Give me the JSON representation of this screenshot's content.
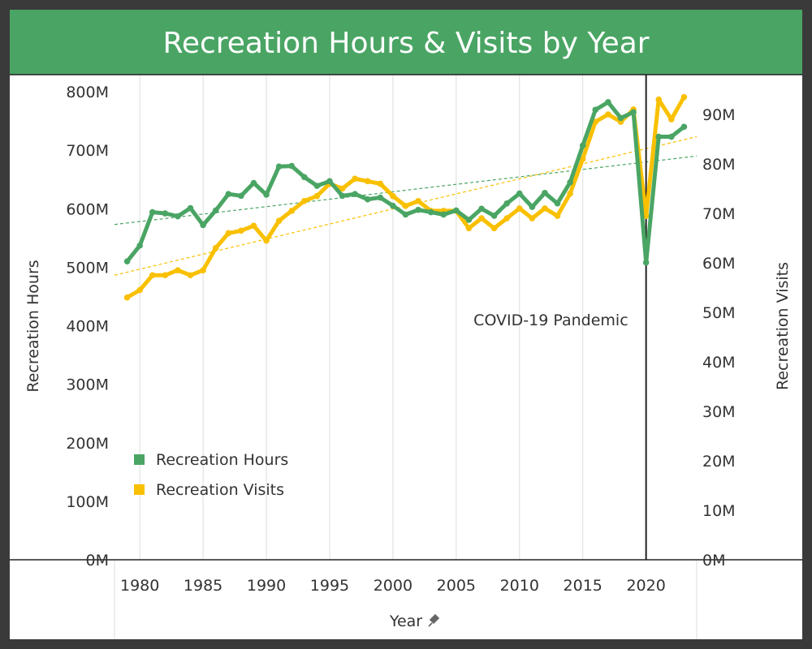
{
  "title": "Recreation Hours & Visits by Year",
  "colors": {
    "hours": "#4aa564",
    "visits": "#f9c000",
    "header": "#4aa564",
    "covid_line": "#222222"
  },
  "chart_data": {
    "type": "line",
    "title": "Recreation Hours & Visits by Year",
    "xlabel": "Year",
    "ylabel_left": "Recreation Hours",
    "ylabel_right": "Recreation Visits",
    "x_ticks": [
      1980,
      1985,
      1990,
      1995,
      2000,
      2005,
      2010,
      2015,
      2020
    ],
    "y_left_ticks": [
      "0M",
      "100M",
      "200M",
      "300M",
      "400M",
      "500M",
      "600M",
      "700M",
      "800M"
    ],
    "y_right_ticks": [
      "0M",
      "10M",
      "20M",
      "30M",
      "40M",
      "50M",
      "60M",
      "70M",
      "80M",
      "90M"
    ],
    "y_left_range": [
      0,
      820
    ],
    "y_right_range": [
      0,
      95
    ],
    "grid": "vertical",
    "legend_position": "bottom-left",
    "x": [
      1979,
      1980,
      1981,
      1982,
      1983,
      1984,
      1985,
      1986,
      1987,
      1988,
      1989,
      1990,
      1991,
      1992,
      1993,
      1994,
      1995,
      1996,
      1997,
      1998,
      1999,
      2000,
      2001,
      2002,
      2003,
      2004,
      2005,
      2006,
      2007,
      2008,
      2009,
      2010,
      2011,
      2012,
      2013,
      2014,
      2015,
      2016,
      2017,
      2018,
      2019,
      2020,
      2021,
      2022,
      2023
    ],
    "series": [
      {
        "name": "Recreation Hours",
        "axis": "left",
        "values": [
          510,
          537,
          594,
          592,
          587,
          601,
          572,
          597,
          625,
          622,
          644,
          624,
          672,
          673,
          654,
          639,
          647,
          622,
          625,
          616,
          619,
          605,
          590,
          598,
          594,
          590,
          597,
          581,
          600,
          588,
          609,
          626,
          603,
          627,
          609,
          645,
          708,
          769,
          782,
          755,
          765,
          508,
          723,
          723,
          740
        ]
      },
      {
        "name": "Recreation Visits",
        "axis": "right",
        "values": [
          53,
          54.5,
          57.5,
          57.5,
          58.5,
          57.5,
          58.5,
          63,
          66,
          66.5,
          67.5,
          64.5,
          68.5,
          70.5,
          72.5,
          73.5,
          76,
          75,
          77,
          76.5,
          76,
          73.5,
          71.5,
          72.5,
          70.5,
          70.5,
          70.5,
          67,
          69,
          67,
          69,
          71,
          69,
          71,
          69.5,
          74,
          81,
          88.5,
          90,
          88.5,
          91,
          69.5,
          93,
          89,
          93.5
        ]
      }
    ],
    "trendlines": [
      {
        "series": "Recreation Hours",
        "style": "dashed",
        "from": [
          1978,
          573
        ],
        "to": [
          2024,
          690
        ]
      },
      {
        "series": "Recreation Visits",
        "style": "dashed",
        "from": [
          1978,
          57.5
        ],
        "to": [
          2024,
          85.5
        ]
      }
    ],
    "annotations": [
      {
        "x": 2020,
        "text": "COVID-19 Pandemic"
      }
    ]
  }
}
